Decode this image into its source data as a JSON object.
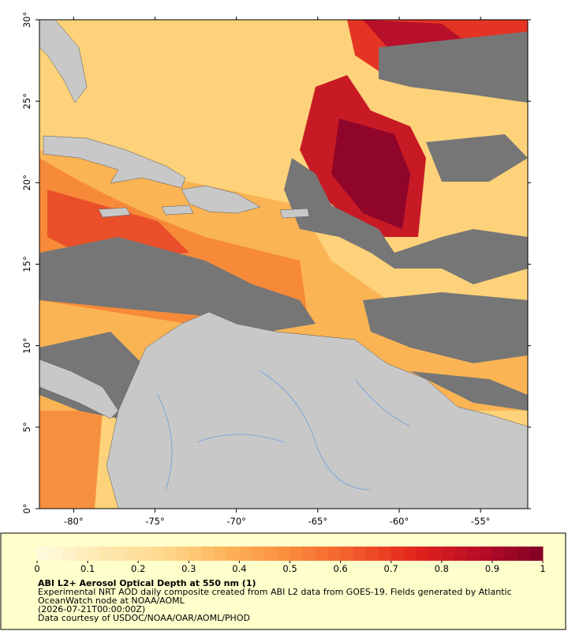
{
  "map": {
    "xlim": [
      -82.1,
      -52.1
    ],
    "ylim": [
      0,
      30
    ],
    "xticks": [
      {
        "value": -80,
        "label": "-80°"
      },
      {
        "value": -75,
        "label": "-75°"
      },
      {
        "value": -70,
        "label": "-70°"
      },
      {
        "value": -65,
        "label": "-65°"
      },
      {
        "value": -60,
        "label": "-60°"
      },
      {
        "value": -55,
        "label": "-55°"
      }
    ],
    "yticks": [
      {
        "value": 0,
        "label": "0°"
      },
      {
        "value": 5,
        "label": "5°"
      },
      {
        "value": 10,
        "label": "10°"
      },
      {
        "value": 15,
        "label": "15°"
      },
      {
        "value": 20,
        "label": "20°"
      },
      {
        "value": 25,
        "label": "25°"
      },
      {
        "value": 30,
        "label": "30°"
      }
    ]
  },
  "colorbar": {
    "range": [
      0,
      1
    ],
    "ticks": [
      0,
      0.1,
      0.2,
      0.3,
      0.4,
      0.5,
      0.6,
      0.7,
      0.8,
      0.9,
      1
    ],
    "colormap": [
      "#fffbe0",
      "#fee9b0",
      "#fed98e",
      "#fdb45a",
      "#fb8c3c",
      "#f25c2a",
      "#e2231c",
      "#b80d26",
      "#800026"
    ]
  },
  "legend": {
    "title": "ABI L2+ Aerosol Optical Depth at 550 nm (1)",
    "lines": [
      "Experimental NRT AOD daily composite created from ABI L2 data from GOES-19. Fields generated by Atlantic",
      "OceanWatch node at NOAA/AOML",
      "(2026-07-21T00:00:00Z)",
      "Data courtesy of USDOC/NOAA/OAR/AOML/PHOD"
    ]
  }
}
